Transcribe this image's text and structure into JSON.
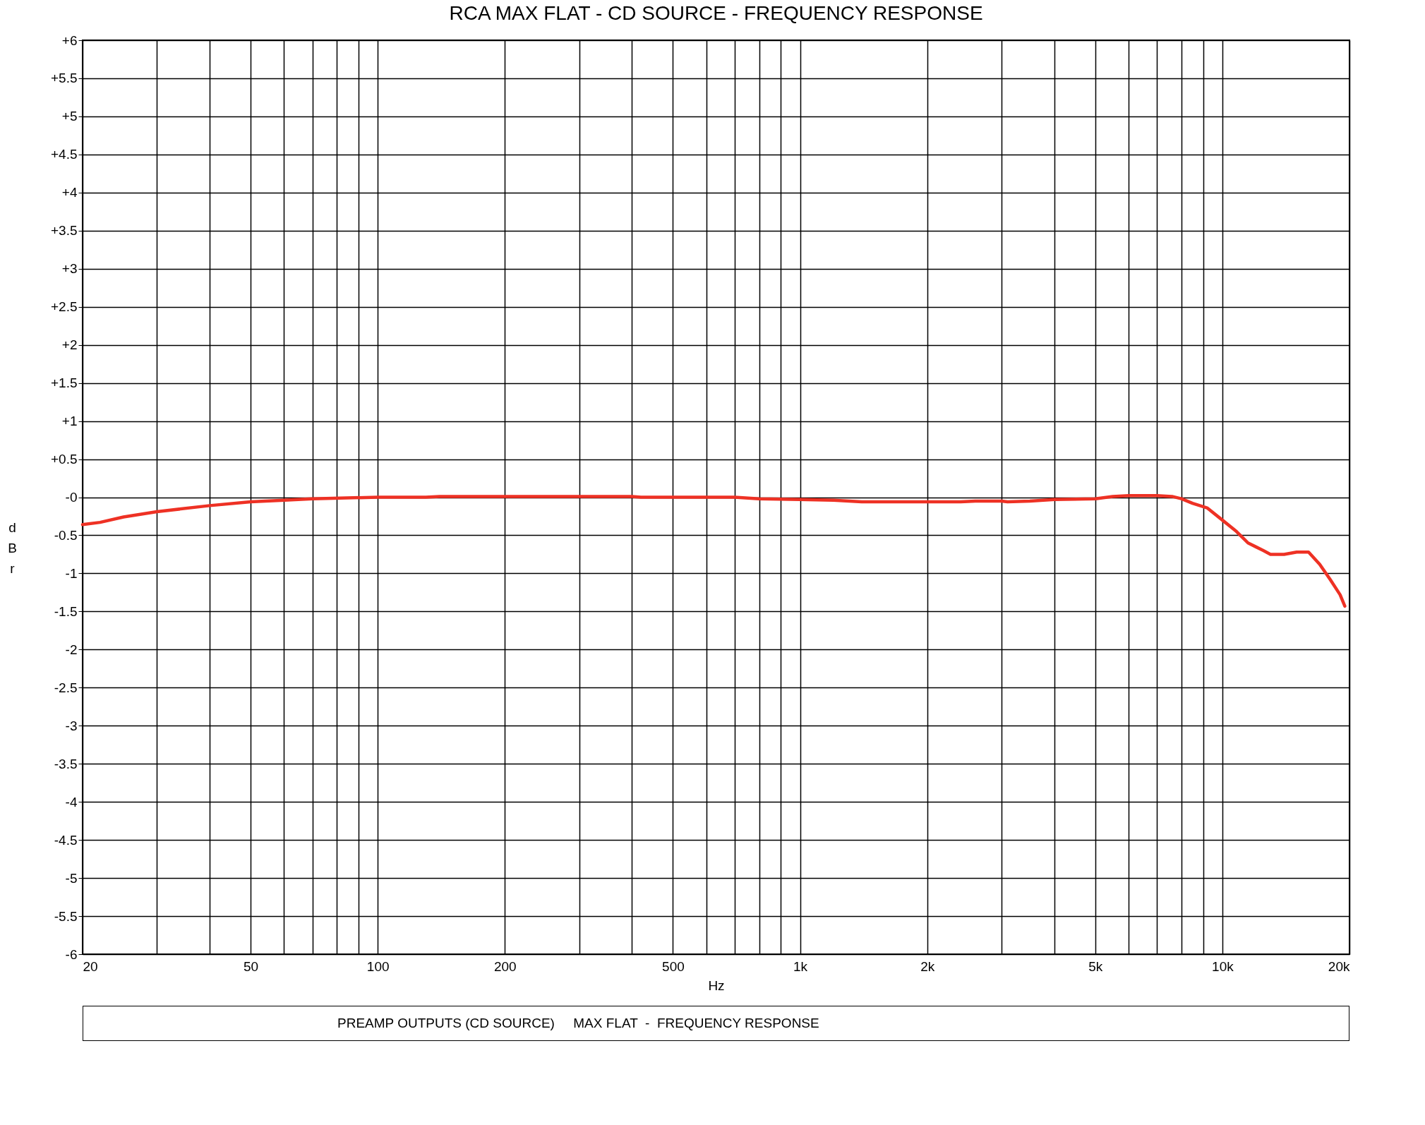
{
  "chart_data": {
    "type": "line",
    "title": "RCA MAX FLAT - CD SOURCE  -  FREQUENCY RESPONSE",
    "xlabel": "Hz",
    "ylabel": "dBr",
    "log": "x",
    "grid": true,
    "marker": "none",
    "line_style": "solid",
    "xlim": [
      20,
      20000
    ],
    "ylim": [
      -6,
      6
    ],
    "xticks": [
      20,
      {
        "value": 30,
        "label": null
      },
      {
        "value": 40,
        "label": null
      },
      50,
      {
        "value": 60,
        "label": null
      },
      {
        "value": 70,
        "label": null
      },
      {
        "value": 80,
        "label": null
      },
      {
        "value": 90,
        "label": null
      },
      100,
      200,
      {
        "value": 300,
        "label": null
      },
      {
        "value": 400,
        "label": null
      },
      500,
      {
        "value": 600,
        "label": null
      },
      {
        "value": 700,
        "label": null
      },
      {
        "value": 800,
        "label": null
      },
      {
        "value": 900,
        "label": null
      },
      {
        "value": 1000,
        "label": "1k"
      },
      {
        "value": 2000,
        "label": "2k"
      },
      {
        "value": 3000,
        "label": null
      },
      {
        "value": 4000,
        "label": null
      },
      {
        "value": 5000,
        "label": "5k"
      },
      {
        "value": 6000,
        "label": null
      },
      {
        "value": 7000,
        "label": null
      },
      {
        "value": 8000,
        "label": null
      },
      {
        "value": 9000,
        "label": null
      },
      {
        "value": 10000,
        "label": "10k"
      },
      {
        "value": 20000,
        "label": "20k"
      }
    ],
    "yticks": [
      {
        "value": 6,
        "label": "+6"
      },
      {
        "value": 5.5,
        "label": "+5.5"
      },
      {
        "value": 5,
        "label": "+5"
      },
      {
        "value": 4.5,
        "label": "+4.5"
      },
      {
        "value": 4,
        "label": "+4"
      },
      {
        "value": 3.5,
        "label": "+3.5"
      },
      {
        "value": 3,
        "label": "+3"
      },
      {
        "value": 2.5,
        "label": "+2.5"
      },
      {
        "value": 2,
        "label": "+2"
      },
      {
        "value": 1.5,
        "label": "+1.5"
      },
      {
        "value": 1,
        "label": "+1"
      },
      {
        "value": 0.5,
        "label": "+0.5"
      },
      {
        "value": 0,
        "label": "-0"
      },
      -0.5,
      -1,
      -1.5,
      -2,
      -2.5,
      -3,
      -3.5,
      -4,
      -4.5,
      -5,
      -5.5,
      -6
    ],
    "annotations": [
      "PREAMP OUTPUTS (CD SOURCE)     MAX FLAT  -  FREQUENCY RESPONSE"
    ],
    "series": [
      {
        "color": "#ee3124",
        "x": [
          20,
          22,
          25,
          30,
          40,
          50,
          60,
          70,
          100,
          130,
          140,
          300,
          400,
          420,
          600,
          700,
          800,
          1000,
          1200,
          1400,
          2000,
          2400,
          2600,
          3000,
          3100,
          3500,
          4000,
          5000,
          5500,
          6000,
          7000,
          7600,
          8000,
          8500,
          9200,
          10000,
          10800,
          11500,
          12500,
          13000,
          14000,
          15000,
          16000,
          17000,
          18000,
          19000,
          19500
        ],
        "values": [
          -0.36,
          -0.33,
          -0.26,
          -0.19,
          -0.11,
          -0.06,
          -0.04,
          -0.02,
          0,
          0,
          0.01,
          0.01,
          0.01,
          0,
          0,
          0,
          -0.02,
          -0.03,
          -0.04,
          -0.06,
          -0.06,
          -0.06,
          -0.05,
          -0.05,
          -0.06,
          -0.05,
          -0.03,
          -0.02,
          0.01,
          0.02,
          0.02,
          0.01,
          -0.02,
          -0.08,
          -0.14,
          -0.3,
          -0.45,
          -0.6,
          -0.7,
          -0.75,
          -0.75,
          -0.72,
          -0.72,
          -0.88,
          -1.08,
          -1.28,
          -1.43
        ]
      }
    ]
  }
}
